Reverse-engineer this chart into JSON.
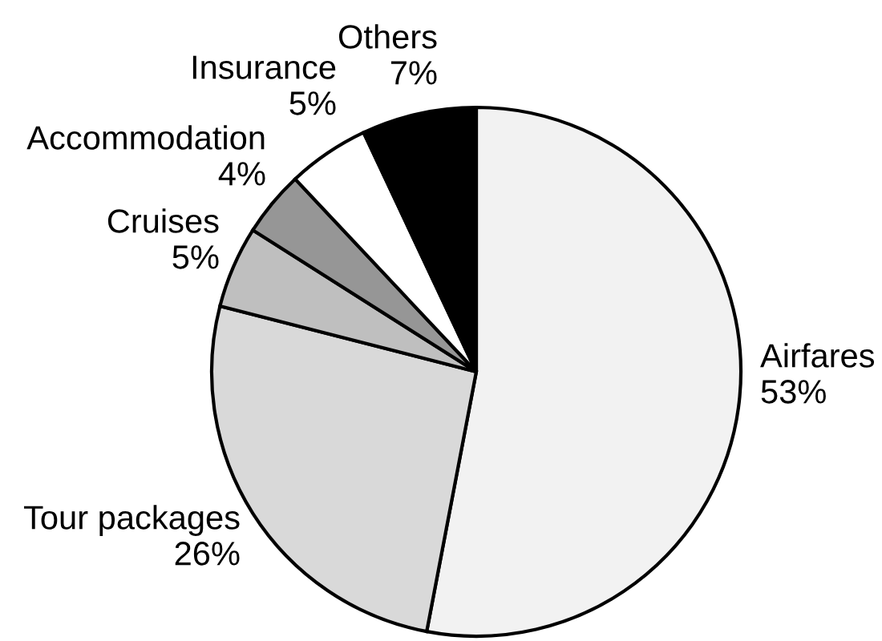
{
  "chart_data": {
    "type": "pie",
    "categories": [
      "Airfares",
      "Tour packages",
      "Cruises",
      "Accommodation",
      "Insurance",
      "Others"
    ],
    "values": [
      53,
      26,
      5,
      4,
      5,
      7
    ],
    "value_labels": [
      "53%",
      "26%",
      "5%",
      "4%",
      "5%",
      "7%"
    ],
    "colors": [
      "#f2f2f2",
      "#d9d9d9",
      "#bfbfbf",
      "#969696",
      "#ffffff",
      "#000000"
    ]
  }
}
